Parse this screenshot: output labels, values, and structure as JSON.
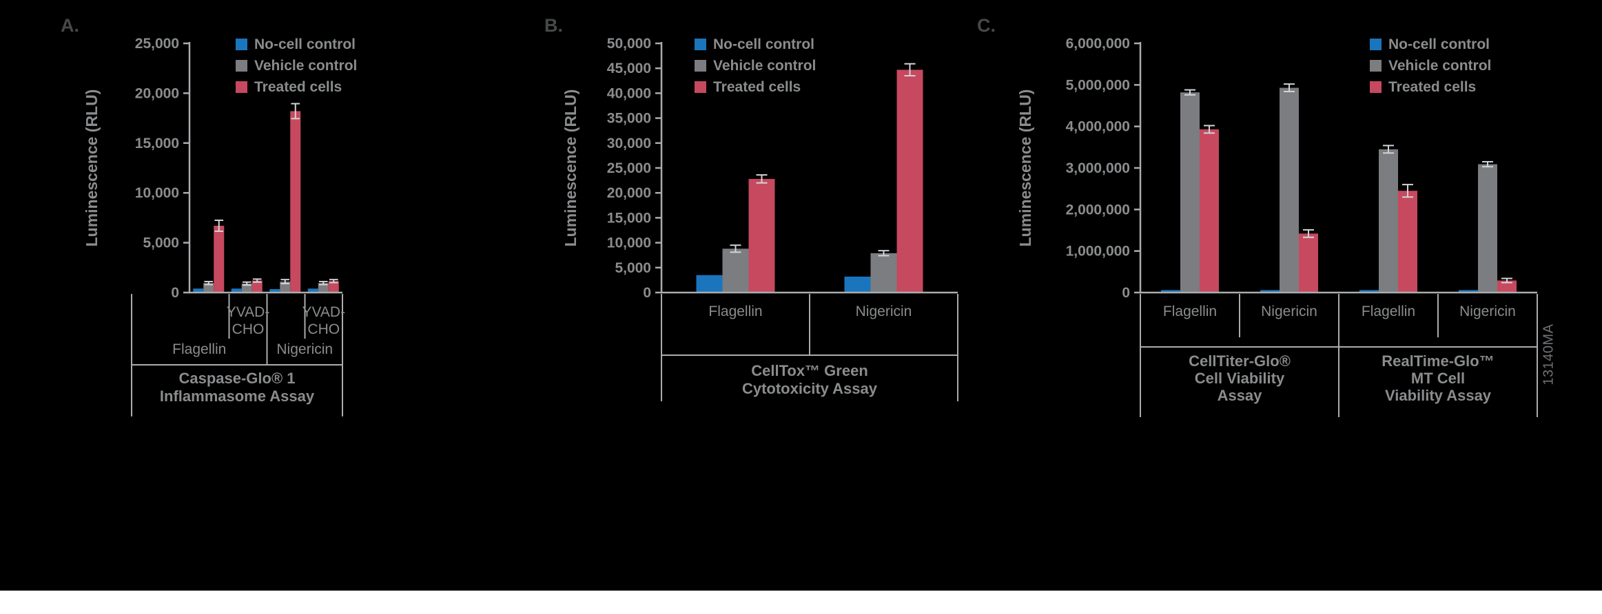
{
  "figure": {
    "watermark": "13140MA",
    "background": "#000000",
    "text_color": "#8a8c8e",
    "axis_color": "#aaacae",
    "panel_label_color": "#47484a",
    "error_bar_color": "#d2d4d6"
  },
  "legend": {
    "items": [
      {
        "label": "No-cell control",
        "color": "#1b75bc"
      },
      {
        "label": "Vehicle control",
        "color": "#7b7d80"
      },
      {
        "label": "Treated cells",
        "color": "#c6495f"
      }
    ]
  },
  "chart_data": [
    {
      "panel": "A",
      "panel_label": "A.",
      "type": "bar",
      "grid": false,
      "legend_position": "upper-left",
      "assay_title": "Caspase-Glo® 1 Inflammasome Assay",
      "title_lines": [
        "Caspase-Glo® 1",
        "Inflammasome Assay"
      ],
      "ylabel": "Luminescence (RLU)",
      "ylim": [
        0,
        25000
      ],
      "ytick_labels": [
        "0",
        "5,000",
        "10,000",
        "15,000",
        "20,000",
        "25,000"
      ],
      "series": [
        "No-cell control",
        "Vehicle control",
        "Treated cells"
      ],
      "treatment_spans": [
        "Flagellin",
        "Nigericin"
      ],
      "groups": [
        {
          "treatment": "Flagellin",
          "inhibitor": "",
          "values": [
            400,
            950,
            6700
          ],
          "errors": [
            0,
            150,
            550
          ]
        },
        {
          "treatment": "Flagellin",
          "inhibitor": "YVAD-CHO",
          "inhibitor_lines": [
            "YVAD-",
            "CHO"
          ],
          "values": [
            400,
            900,
            1200
          ],
          "errors": [
            0,
            150,
            150
          ]
        },
        {
          "treatment": "Nigericin",
          "inhibitor": "",
          "values": [
            350,
            1100,
            18200
          ],
          "errors": [
            0,
            200,
            750
          ]
        },
        {
          "treatment": "Nigericin",
          "inhibitor": "YVAD-CHO",
          "inhibitor_lines": [
            "YVAD-",
            "CHO"
          ],
          "values": [
            400,
            950,
            1150
          ],
          "errors": [
            0,
            150,
            150
          ]
        }
      ]
    },
    {
      "panel": "B",
      "panel_label": "B.",
      "type": "bar",
      "grid": false,
      "legend_position": "upper-left",
      "assay_title": "CellTox™ Green Cytotoxicity Assay",
      "title_lines": [
        "CellTox™ Green",
        "Cytotoxicity Assay"
      ],
      "ylabel": "Luminescence (RLU)",
      "ylim": [
        0,
        50000
      ],
      "ytick_labels": [
        "0",
        "5,000",
        "10,000",
        "15,000",
        "20,000",
        "25,000",
        "30,000",
        "35,000",
        "40,000",
        "45,000",
        "50,000"
      ],
      "series": [
        "No-cell control",
        "Vehicle control",
        "Treated cells"
      ],
      "groups": [
        {
          "category": "Flagellin",
          "values": [
            3500,
            8800,
            22800
          ],
          "errors": [
            0,
            700,
            800
          ]
        },
        {
          "category": "Nigericin",
          "values": [
            3200,
            7900,
            44700
          ],
          "errors": [
            0,
            500,
            1200
          ]
        }
      ]
    },
    {
      "panel": "C",
      "panel_label": "C.",
      "type": "bar",
      "grid": false,
      "legend_position": "upper-right",
      "ylabel": "Luminescence (RLU)",
      "ylim": [
        0,
        6000000
      ],
      "ytick_labels": [
        "0",
        "1,000,000",
        "2,000,000",
        "3,000,000",
        "4,000,000",
        "5,000,000",
        "6,000,000"
      ],
      "series": [
        "No-cell control",
        "Vehicle control",
        "Treated cells"
      ],
      "assays": [
        {
          "assay_title": "CellTiter-Glo® Cell Viability Assay",
          "title_lines": [
            "CellTiter-Glo®",
            "Cell Viability",
            "Assay"
          ],
          "groups": [
            {
              "category": "Flagellin",
              "values": [
                60000,
                4820000,
                3930000
              ],
              "errors": [
                0,
                60000,
                90000
              ]
            },
            {
              "category": "Nigericin",
              "values": [
                60000,
                4930000,
                1420000
              ],
              "errors": [
                0,
                90000,
                90000
              ]
            }
          ]
        },
        {
          "assay_title": "RealTime-Glo™ MT Cell Viability Assay",
          "title_lines": [
            "RealTime-Glo™",
            "MT Cell",
            "Viability Assay"
          ],
          "groups": [
            {
              "category": "Flagellin",
              "values": [
                60000,
                3450000,
                2450000
              ],
              "errors": [
                0,
                90000,
                150000
              ]
            },
            {
              "category": "Nigericin",
              "values": [
                60000,
                3090000,
                290000
              ],
              "errors": [
                0,
                60000,
                50000
              ]
            }
          ]
        }
      ]
    }
  ]
}
